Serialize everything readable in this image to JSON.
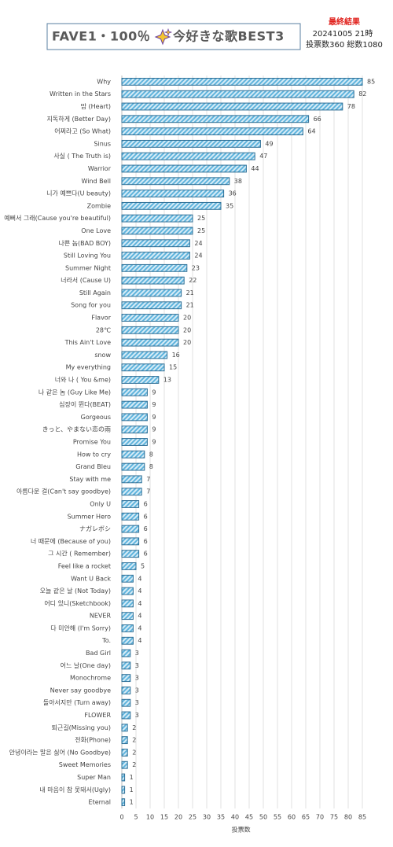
{
  "chart_data": {
    "type": "bar",
    "orientation": "horizontal",
    "title": [
      "FAVE1・100％",
      "今好きな歌BEST3"
    ],
    "annotations": [
      "最終結果",
      "20241005  21時",
      "投票数360  総数1080"
    ],
    "x_label": "投票数",
    "categories": [
      "Why",
      "Written in the Stars",
      "맘 (Heart)",
      "지독하게 (Better Day)",
      "어쩌라고 (So What)",
      "Sinus",
      "사실 ( The Truth is)",
      "Warrior",
      "Wind Bell",
      "니가 예쁘다(U beauty)",
      "Zombie",
      "예뻐서 그래(Cause you're beautiful)",
      "One Love",
      "나쁜 놈(BAD BOY)",
      "Still Loving You",
      "Summer Night",
      "너라서 (Cause U)",
      "Still Again",
      "Song for you",
      "Flavor",
      "28℃",
      "This Ain't Love",
      "snow",
      "My everything",
      "너와 나 ( You &me)",
      "나 같은 놈 (Guy Like Me)",
      "심장이 뛴다(BEAT)",
      "Gorgeous",
      "きっと、やまない恋の雨",
      "Promise You",
      "How to cry",
      "Grand Bleu",
      "Stay with me",
      "아름다운 걸(Can't say goodbye)",
      "Only U",
      "Summer Hero",
      "ナガレボシ",
      "너 때문에 (Because of you)",
      "그 시간 ( Remember)",
      "Feel like a rocket",
      "Want U Back",
      "오늘 같은 날 (Not Today)",
      "어디 있니(Sketchbook)",
      "NEVER",
      "다 미안해 (I'm Sorry)",
      "To.",
      "Bad Girl",
      "어느 날(One day)",
      "Monochrome",
      "Never say goodbye",
      "돌아서지만 (Turn away)",
      "FLOWER",
      "퇴근길(Missing you)",
      "전화(Phone)",
      "안녕이라는 말은 싫어 (No Goodbye)",
      "Sweet Memories",
      "Super Man",
      "내 마음이 참 못돼서(Ugly)",
      "Eternal"
    ],
    "values": [
      85,
      82,
      78,
      66,
      64,
      49,
      47,
      44,
      38,
      36,
      35,
      25,
      25,
      24,
      24,
      23,
      22,
      21,
      21,
      20,
      20,
      20,
      16,
      15,
      13,
      9,
      9,
      9,
      9,
      9,
      8,
      8,
      7,
      7,
      6,
      6,
      6,
      6,
      6,
      5,
      4,
      4,
      4,
      4,
      4,
      4,
      3,
      3,
      3,
      3,
      3,
      3,
      2,
      2,
      2,
      2,
      1,
      1,
      1
    ],
    "color": "#5fb3dc",
    "edge_color": "#2e6f96",
    "xlim": [
      0,
      87
    ],
    "xticks": [
      0,
      5,
      10,
      15,
      20,
      25,
      30,
      35,
      40,
      45,
      50,
      55,
      60,
      65,
      70,
      75,
      80,
      85
    ],
    "grid": true
  }
}
